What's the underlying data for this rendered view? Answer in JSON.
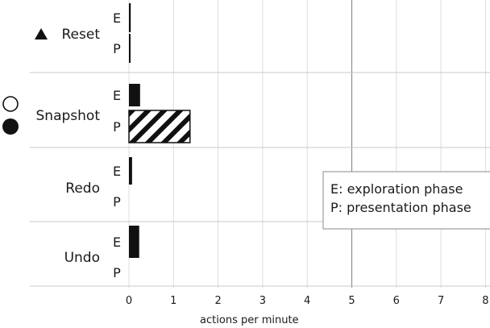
{
  "chart_data": {
    "type": "bar",
    "orientation": "horizontal",
    "xlabel": "actions per minute",
    "xlim": [
      0,
      8
    ],
    "x_ticks": [
      "0",
      "1",
      "2",
      "3",
      "4",
      "5",
      "6",
      "7",
      "8"
    ],
    "highlight_gridline": 5,
    "grid": true,
    "categories": [
      {
        "label": "Reset",
        "marker": "filled-triangle",
        "rows": [
          {
            "phase": "E",
            "value": 0.04,
            "pattern": "solid"
          },
          {
            "phase": "P",
            "value": 0.02,
            "pattern": "solid"
          }
        ]
      },
      {
        "label": "Snapshot",
        "marker": "hollow-and-filled-circle",
        "rows": [
          {
            "phase": "E",
            "value": 0.25,
            "pattern": "solid"
          },
          {
            "phase": "P",
            "value": 1.37,
            "pattern": "hatched"
          }
        ]
      },
      {
        "label": "Redo",
        "marker": "",
        "rows": [
          {
            "phase": "E",
            "value": 0.07,
            "pattern": "solid"
          },
          {
            "phase": "P",
            "value": 0.0,
            "pattern": "solid"
          }
        ]
      },
      {
        "label": "Undo",
        "marker": "",
        "rows": [
          {
            "phase": "E",
            "value": 0.23,
            "pattern": "solid"
          },
          {
            "phase": "P",
            "value": 0.0,
            "pattern": "solid"
          }
        ]
      }
    ],
    "legend": {
      "placement": "right",
      "entries": [
        "E: exploration phase",
        "P: presentation phase"
      ]
    },
    "colors": {
      "bar": "#111111",
      "grid": "#dcdcdc",
      "grid_strong": "#8c8c8c"
    }
  }
}
